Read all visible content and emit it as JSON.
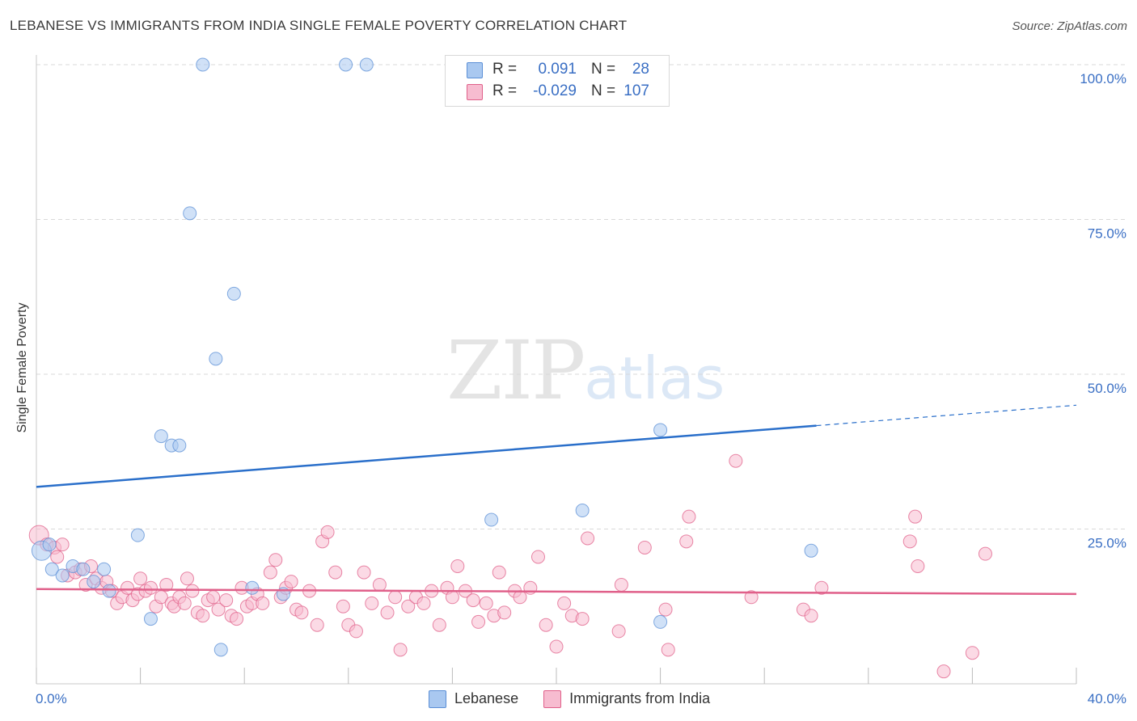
{
  "header": {
    "title": "LEBANESE VS IMMIGRANTS FROM INDIA SINGLE FEMALE POVERTY CORRELATION CHART",
    "source": "Source: ZipAtlas.com"
  },
  "watermark": {
    "zip": "ZIP",
    "atlas": "atlas"
  },
  "legend_top": {
    "rows": [
      {
        "r_label": "R =",
        "r_value": "0.091",
        "n_label": "N =",
        "n_value": "28",
        "color": "#a9c8f0"
      },
      {
        "r_label": "R =",
        "r_value": "-0.029",
        "n_label": "N =",
        "n_value": "107",
        "color": "#f7bcd0"
      }
    ]
  },
  "legend_bottom": {
    "items": [
      {
        "label": "Lebanese",
        "color": "#a9c8f0"
      },
      {
        "label": "Immigrants from India",
        "color": "#f7bcd0"
      }
    ]
  },
  "chart_data": {
    "type": "scatter",
    "title": "LEBANESE VS IMMIGRANTS FROM INDIA SINGLE FEMALE POVERTY CORRELATION CHART",
    "xlabel": "",
    "ylabel": "Single Female Poverty",
    "xlim": [
      0,
      40
    ],
    "ylim": [
      0,
      100
    ],
    "x_tick_labels": [
      "0.0%",
      "40.0%"
    ],
    "y_tick_labels": [
      "25.0%",
      "50.0%",
      "75.0%",
      "100.0%"
    ],
    "y_ticks": [
      25,
      50,
      75,
      100
    ],
    "grid": true,
    "legend_position": "top-center",
    "series": [
      {
        "name": "Lebanese",
        "color": "#5b8fd6",
        "fill": "#a9c8f0",
        "r": 0.091,
        "n": 28,
        "trend": {
          "y_at_0": 31.8,
          "y_at_40": 45.0,
          "solid_until_x": 30.0
        },
        "points": [
          [
            0.2,
            21.5
          ],
          [
            0.5,
            22.5
          ],
          [
            0.6,
            18.5
          ],
          [
            1.0,
            17.5
          ],
          [
            1.4,
            19.0
          ],
          [
            1.8,
            18.5
          ],
          [
            2.2,
            16.5
          ],
          [
            2.6,
            18.5
          ],
          [
            2.8,
            15.0
          ],
          [
            3.9,
            24.0
          ],
          [
            4.4,
            10.5
          ],
          [
            4.8,
            40.0
          ],
          [
            5.2,
            38.5
          ],
          [
            5.5,
            38.5
          ],
          [
            5.9,
            76.0
          ],
          [
            6.4,
            100.0
          ],
          [
            6.9,
            52.5
          ],
          [
            7.1,
            5.5
          ],
          [
            7.6,
            63.0
          ],
          [
            8.3,
            15.5
          ],
          [
            9.5,
            14.5
          ],
          [
            11.9,
            100.0
          ],
          [
            12.7,
            100.0
          ],
          [
            17.5,
            26.5
          ],
          [
            21.0,
            28.0
          ],
          [
            24.0,
            10.0
          ],
          [
            24.0,
            41.0
          ],
          [
            29.8,
            21.5
          ]
        ]
      },
      {
        "name": "Immigrants from India",
        "color": "#e0608a",
        "fill": "#f7bcd0",
        "r": -0.029,
        "n": 107,
        "trend": {
          "y_at_0": 15.3,
          "y_at_40": 14.5,
          "solid_until_x": 40.0
        },
        "points": [
          [
            0.1,
            24.0
          ],
          [
            0.4,
            22.5
          ],
          [
            0.7,
            22.0
          ],
          [
            0.8,
            20.5
          ],
          [
            1.0,
            22.5
          ],
          [
            1.2,
            17.5
          ],
          [
            1.5,
            18.0
          ],
          [
            1.7,
            18.5
          ],
          [
            1.9,
            16.0
          ],
          [
            2.1,
            19.0
          ],
          [
            2.3,
            17.0
          ],
          [
            2.5,
            15.5
          ],
          [
            2.7,
            16.5
          ],
          [
            2.9,
            15.0
          ],
          [
            3.1,
            13.0
          ],
          [
            3.3,
            14.0
          ],
          [
            3.5,
            15.5
          ],
          [
            3.7,
            13.5
          ],
          [
            3.9,
            14.5
          ],
          [
            4.0,
            17.0
          ],
          [
            4.2,
            15.0
          ],
          [
            4.4,
            15.5
          ],
          [
            4.6,
            12.5
          ],
          [
            4.8,
            14.0
          ],
          [
            5.0,
            16.0
          ],
          [
            5.2,
            13.0
          ],
          [
            5.3,
            12.5
          ],
          [
            5.5,
            14.0
          ],
          [
            5.7,
            13.0
          ],
          [
            5.8,
            17.0
          ],
          [
            6.0,
            15.0
          ],
          [
            6.2,
            11.5
          ],
          [
            6.4,
            11.0
          ],
          [
            6.6,
            13.5
          ],
          [
            6.8,
            14.0
          ],
          [
            7.0,
            12.0
          ],
          [
            7.3,
            13.5
          ],
          [
            7.5,
            11.0
          ],
          [
            7.7,
            10.5
          ],
          [
            7.9,
            15.5
          ],
          [
            8.1,
            12.5
          ],
          [
            8.3,
            13.0
          ],
          [
            8.5,
            14.5
          ],
          [
            8.7,
            13.0
          ],
          [
            9.0,
            18.0
          ],
          [
            9.2,
            20.0
          ],
          [
            9.4,
            14.0
          ],
          [
            9.6,
            15.5
          ],
          [
            9.8,
            16.5
          ],
          [
            10.0,
            12.0
          ],
          [
            10.2,
            11.5
          ],
          [
            10.5,
            15.0
          ],
          [
            10.8,
            9.5
          ],
          [
            11.0,
            23.0
          ],
          [
            11.2,
            24.5
          ],
          [
            11.5,
            18.0
          ],
          [
            11.8,
            12.5
          ],
          [
            12.0,
            9.5
          ],
          [
            12.3,
            8.5
          ],
          [
            12.6,
            18.0
          ],
          [
            12.9,
            13.0
          ],
          [
            13.2,
            16.0
          ],
          [
            13.5,
            11.5
          ],
          [
            13.8,
            14.0
          ],
          [
            14.0,
            5.5
          ],
          [
            14.3,
            12.5
          ],
          [
            14.6,
            14.0
          ],
          [
            14.9,
            13.0
          ],
          [
            15.2,
            15.0
          ],
          [
            15.5,
            9.5
          ],
          [
            15.8,
            15.5
          ],
          [
            16.0,
            14.0
          ],
          [
            16.2,
            19.0
          ],
          [
            16.5,
            15.0
          ],
          [
            16.8,
            13.5
          ],
          [
            17.0,
            10.0
          ],
          [
            17.3,
            13.0
          ],
          [
            17.6,
            11.0
          ],
          [
            17.8,
            18.0
          ],
          [
            18.0,
            11.5
          ],
          [
            18.4,
            15.0
          ],
          [
            18.6,
            14.0
          ],
          [
            19.0,
            15.5
          ],
          [
            19.3,
            20.5
          ],
          [
            19.6,
            9.5
          ],
          [
            20.0,
            6.0
          ],
          [
            20.3,
            13.0
          ],
          [
            20.6,
            11.0
          ],
          [
            21.0,
            10.5
          ],
          [
            21.2,
            23.5
          ],
          [
            22.4,
            8.5
          ],
          [
            22.5,
            16.0
          ],
          [
            23.4,
            22.0
          ],
          [
            24.2,
            12.0
          ],
          [
            24.3,
            5.5
          ],
          [
            25.0,
            23.0
          ],
          [
            25.1,
            27.0
          ],
          [
            26.9,
            36.0
          ],
          [
            27.5,
            14.0
          ],
          [
            29.5,
            12.0
          ],
          [
            29.8,
            11.0
          ],
          [
            30.2,
            15.5
          ],
          [
            33.6,
            23.0
          ],
          [
            33.8,
            27.0
          ],
          [
            33.9,
            19.0
          ],
          [
            34.9,
            2.0
          ],
          [
            36.0,
            5.0
          ],
          [
            36.5,
            21.0
          ]
        ]
      }
    ]
  }
}
